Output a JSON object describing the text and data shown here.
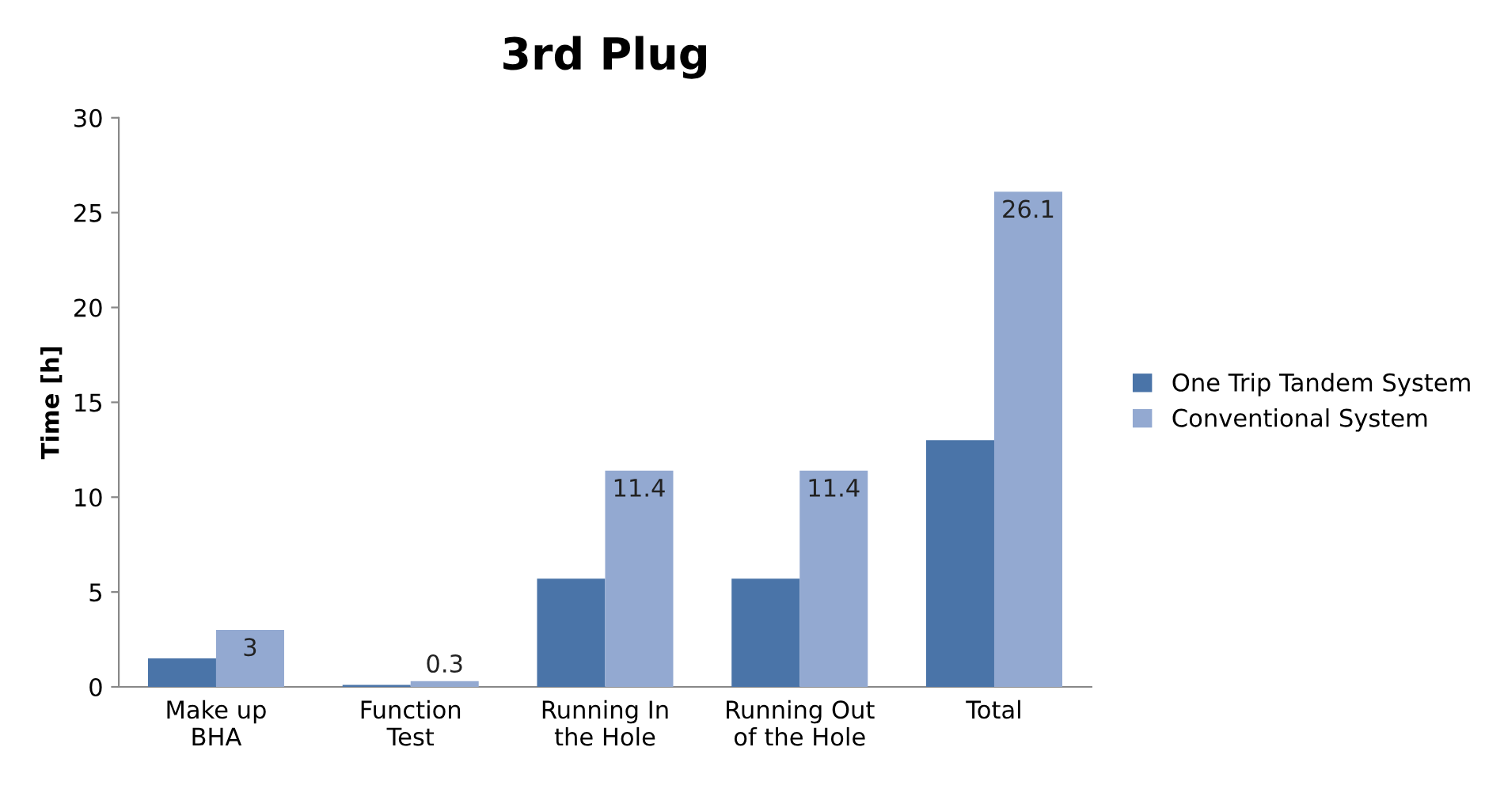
{
  "chart_data": {
    "type": "bar",
    "title": "3rd Plug",
    "ylabel": "Time [h]",
    "categories": [
      "Make up\nBHA",
      "Function\nTest",
      "Running In\nthe Hole",
      "Running Out\nof the Hole",
      "Total"
    ],
    "series": [
      {
        "name": "One Trip Tandem System",
        "color": "#4a74a8",
        "values": [
          1.5,
          0.1,
          5.7,
          5.7,
          13
        ]
      },
      {
        "name": "Conventional System",
        "color": "#93a9d1",
        "values": [
          3,
          0.3,
          11.4,
          11.4,
          26.1
        ],
        "value_labels": [
          "3",
          "0.3",
          "11.4",
          "11.4",
          "26.1"
        ]
      }
    ],
    "ylim": [
      0,
      30
    ],
    "yticks": [
      0,
      5,
      10,
      15,
      20,
      25,
      30
    ],
    "grid": false,
    "legend": "right"
  }
}
